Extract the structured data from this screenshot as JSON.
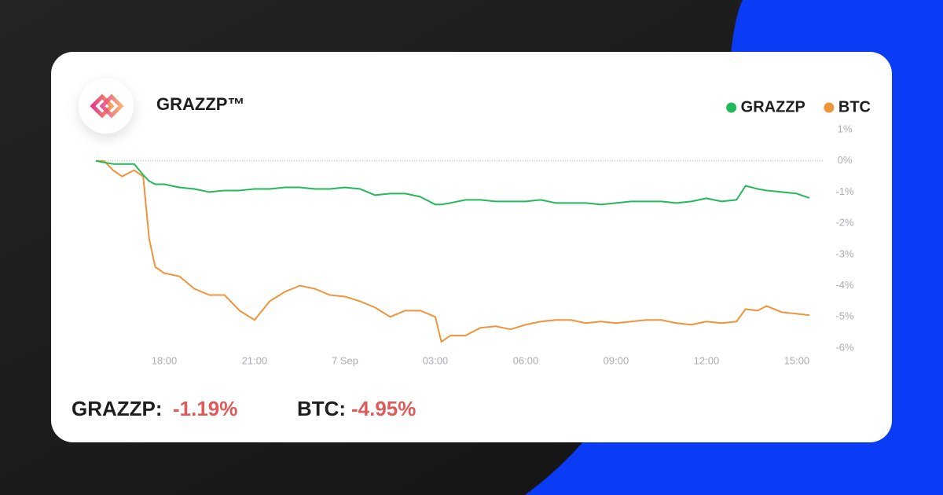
{
  "chart_data": {
    "type": "line",
    "title": "GRAZZP™",
    "x": [
      15.73,
      16.0,
      16.3,
      16.6,
      17.0,
      17.3,
      17.5,
      17.7,
      18.0,
      18.5,
      19.0,
      19.5,
      20.0,
      20.5,
      21.0,
      21.5,
      22.0,
      22.5,
      23.0,
      23.5,
      24.0,
      24.5,
      25.0,
      25.5,
      26.0,
      26.5,
      27.0,
      27.2,
      27.5,
      28.0,
      28.5,
      29.0,
      29.5,
      30.0,
      30.5,
      31.0,
      31.5,
      32.0,
      32.5,
      33.0,
      33.5,
      34.0,
      34.5,
      35.0,
      35.5,
      36.0,
      36.5,
      37.0,
      37.3,
      37.7,
      38.0,
      38.5,
      39.0,
      39.42
    ],
    "series": [
      {
        "name": "GRAZZP",
        "color": "#22b95a",
        "values": [
          0,
          -0.05,
          -0.1,
          -0.1,
          -0.1,
          -0.45,
          -0.65,
          -0.75,
          -0.75,
          -0.85,
          -0.9,
          -1.0,
          -0.95,
          -0.95,
          -0.9,
          -0.9,
          -0.85,
          -0.85,
          -0.9,
          -0.9,
          -0.85,
          -0.9,
          -1.1,
          -1.05,
          -1.05,
          -1.15,
          -1.4,
          -1.4,
          -1.35,
          -1.25,
          -1.25,
          -1.3,
          -1.3,
          -1.3,
          -1.25,
          -1.35,
          -1.35,
          -1.35,
          -1.4,
          -1.35,
          -1.3,
          -1.3,
          -1.3,
          -1.35,
          -1.3,
          -1.2,
          -1.3,
          -1.25,
          -0.8,
          -0.9,
          -0.95,
          -1.0,
          -1.05,
          -1.19
        ]
      },
      {
        "name": "BTC",
        "color": "#f0943a",
        "values": [
          0,
          0,
          -0.3,
          -0.5,
          -0.3,
          -0.5,
          -2.5,
          -3.4,
          -3.6,
          -3.7,
          -4.1,
          -4.3,
          -4.3,
          -4.8,
          -5.1,
          -4.5,
          -4.2,
          -4.0,
          -4.1,
          -4.3,
          -4.35,
          -4.5,
          -4.7,
          -5.0,
          -4.8,
          -4.8,
          -5.0,
          -5.8,
          -5.6,
          -5.6,
          -5.35,
          -5.3,
          -5.4,
          -5.25,
          -5.15,
          -5.1,
          -5.1,
          -5.2,
          -5.15,
          -5.2,
          -5.15,
          -5.1,
          -5.1,
          -5.2,
          -5.25,
          -5.15,
          -5.2,
          -5.15,
          -4.75,
          -4.8,
          -4.65,
          -4.85,
          -4.9,
          -4.95
        ]
      }
    ],
    "xlim": [
      15.73,
      39.42
    ],
    "xticks": [
      {
        "value": 18,
        "label": "18:00"
      },
      {
        "value": 21,
        "label": "21:00"
      },
      {
        "value": 24,
        "label": "7 Sep"
      },
      {
        "value": 27,
        "label": "03:00"
      },
      {
        "value": 30,
        "label": "06:00"
      },
      {
        "value": 33,
        "label": "09:00"
      },
      {
        "value": 36,
        "label": "12:00"
      },
      {
        "value": 39,
        "label": "15:00"
      }
    ],
    "ylim": [
      -6,
      1
    ],
    "yticks": [
      {
        "value": 1,
        "label": "1%"
      },
      {
        "value": 0,
        "label": "0%"
      },
      {
        "value": -1,
        "label": "-1%"
      },
      {
        "value": -2,
        "label": "-2%"
      },
      {
        "value": -3,
        "label": "-3%"
      },
      {
        "value": -4,
        "label": "-4%"
      },
      {
        "value": -5,
        "label": "-5%"
      },
      {
        "value": -6,
        "label": "-6%"
      }
    ],
    "zero_line": true,
    "legend": "top-right",
    "summary": [
      {
        "name": "GRAZZP:",
        "change": "-1.19%"
      },
      {
        "name": "BTC:",
        "change": "-4.95%"
      }
    ]
  }
}
